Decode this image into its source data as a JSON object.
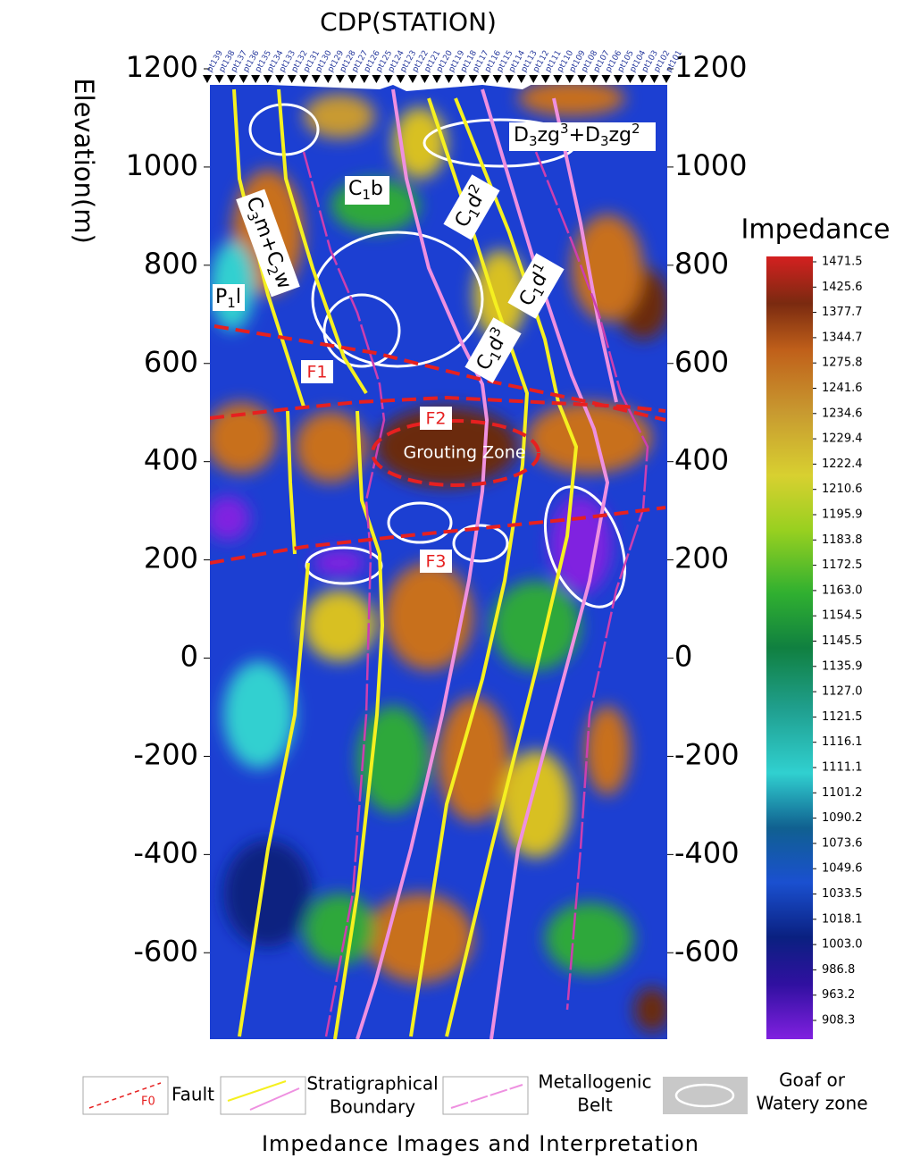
{
  "chart_data": {
    "type": "section",
    "title": "CDP(STATION)",
    "y_label": "Elevation(m)",
    "ylim": [
      -776,
      1200
    ],
    "yticks": [
      1200,
      1000,
      800,
      600,
      400,
      200,
      0,
      -200,
      -400,
      -600
    ],
    "stations": [
      "pt139",
      "pt138",
      "pt137",
      "pt136",
      "pt135",
      "pt134",
      "pt133",
      "pt132",
      "pt131",
      "pt130",
      "pt129",
      "pt128",
      "pt127",
      "pt126",
      "pt125",
      "pt124",
      "pt123",
      "pt122",
      "pt121",
      "pt120",
      "pt119",
      "pt118",
      "pt117",
      "pt116",
      "pt115",
      "pt114",
      "pt113",
      "pt112",
      "pt111",
      "pt110",
      "pt109",
      "pt108",
      "pt107",
      "pt106",
      "pt105",
      "pt104",
      "pt103",
      "pt102",
      "pt101"
    ],
    "colorbar": {
      "title": "Impedance",
      "ticks": [
        1471.5,
        1425.6,
        1377.7,
        1344.7,
        1275.8,
        1241.6,
        1234.6,
        1229.4,
        1222.4,
        1210.6,
        1195.9,
        1183.8,
        1172.5,
        {
          "value": 1163,
          "label": "1163.0"
        },
        1154.5,
        1145.5,
        1135.9,
        {
          "value": 1127,
          "label": "1127.0"
        },
        1121.5,
        1116.1,
        1111.1,
        1101.2,
        1090.2,
        1073.6,
        1049.6,
        1033.5,
        1018.1,
        {
          "value": 1003,
          "label": "1003.0"
        },
        986.8,
        963.2,
        908.3
      ]
    },
    "formations": [
      [
        "P",
        "1",
        "l"
      ],
      [
        "C",
        "3",
        "m+C",
        "2",
        "w"
      ],
      [
        "C",
        "1",
        "b"
      ],
      [
        "C",
        "1",
        "d",
        "2"
      ],
      [
        "C",
        "1",
        "d",
        "1"
      ],
      [
        "C",
        "1",
        "d",
        "3"
      ],
      [
        "D",
        "3",
        "zg",
        "3",
        "+D",
        "3",
        "zg",
        "2"
      ]
    ],
    "faults": [
      "F1",
      "F2",
      "F3"
    ],
    "grouting_zone": "Grouting Zone",
    "legend": [
      {
        "name": [
          "Fault"
        ],
        "sample": "F0"
      },
      {
        "name": [
          "Stratigraphical",
          "Boundary"
        ]
      },
      {
        "name": [
          "Metallogenic",
          "Belt"
        ]
      },
      {
        "name": [
          "Goaf or",
          "Watery zone"
        ]
      }
    ],
    "caption": "Impedance Images and Interpretation"
  }
}
